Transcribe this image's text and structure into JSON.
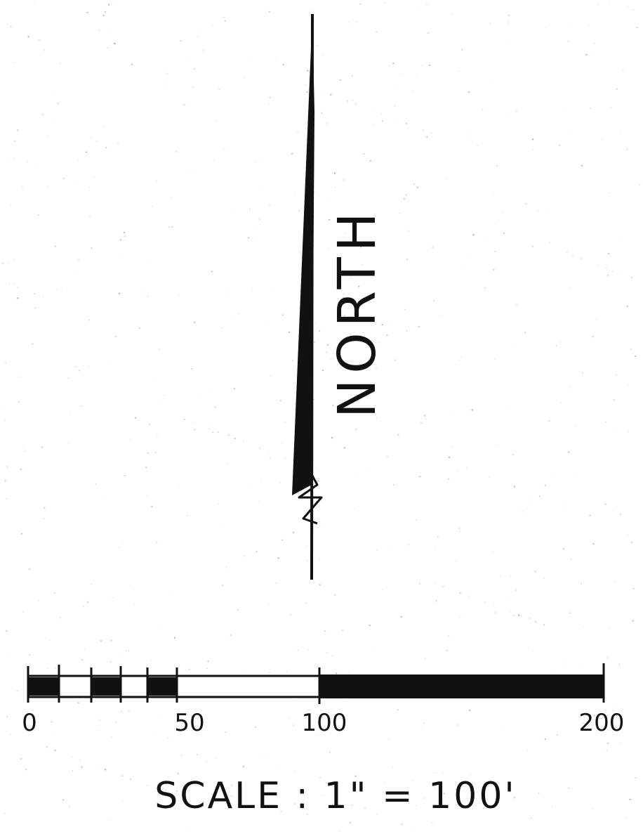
{
  "north_arrow": {
    "label": "NORTH",
    "letters": [
      "N",
      "O",
      "R",
      "T",
      "H"
    ]
  },
  "scale_bar": {
    "ticks": [
      "0",
      "50",
      "100",
      "200"
    ],
    "scale_text": "SCALE : 1\" = 100'"
  },
  "colors": {
    "ink": "#111111",
    "paper": "#ffffff",
    "speckle": "#9a9a9a"
  }
}
